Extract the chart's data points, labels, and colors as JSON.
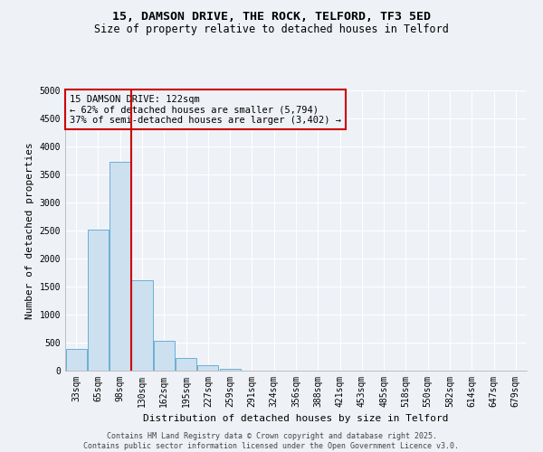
{
  "title_line1": "15, DAMSON DRIVE, THE ROCK, TELFORD, TF3 5ED",
  "title_line2": "Size of property relative to detached houses in Telford",
  "xlabel": "Distribution of detached houses by size in Telford",
  "ylabel": "Number of detached properties",
  "categories": [
    "33sqm",
    "65sqm",
    "98sqm",
    "130sqm",
    "162sqm",
    "195sqm",
    "227sqm",
    "259sqm",
    "291sqm",
    "324sqm",
    "356sqm",
    "388sqm",
    "421sqm",
    "453sqm",
    "485sqm",
    "518sqm",
    "550sqm",
    "582sqm",
    "614sqm",
    "647sqm",
    "679sqm"
  ],
  "values": [
    380,
    2520,
    3720,
    1620,
    540,
    230,
    100,
    40,
    5,
    2,
    0,
    0,
    0,
    0,
    0,
    0,
    0,
    0,
    0,
    0,
    0
  ],
  "bar_color": "#cce0f0",
  "bar_edge_color": "#6aafd6",
  "vline_x_index": 2,
  "vline_color": "#cc0000",
  "annotation_text": "15 DAMSON DRIVE: 122sqm\n← 62% of detached houses are smaller (5,794)\n37% of semi-detached houses are larger (3,402) →",
  "annotation_box_color": "#cc0000",
  "ylim": [
    0,
    5000
  ],
  "yticks": [
    0,
    500,
    1000,
    1500,
    2000,
    2500,
    3000,
    3500,
    4000,
    4500,
    5000
  ],
  "background_color": "#eef2f7",
  "grid_color": "#ffffff",
  "footer_line1": "Contains HM Land Registry data © Crown copyright and database right 2025.",
  "footer_line2": "Contains public sector information licensed under the Open Government Licence v3.0.",
  "title_fontsize": 9.5,
  "subtitle_fontsize": 8.5,
  "tick_fontsize": 7,
  "ylabel_fontsize": 8,
  "xlabel_fontsize": 8,
  "footer_fontsize": 6
}
